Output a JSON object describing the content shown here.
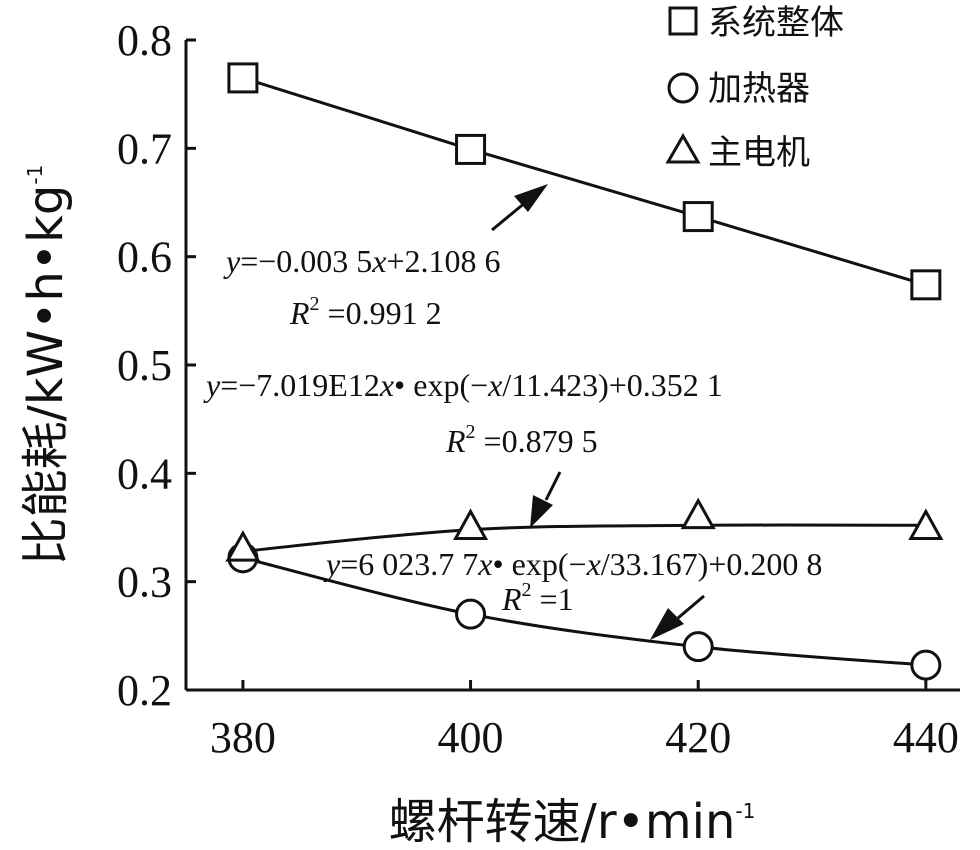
{
  "chart_data": {
    "type": "line",
    "xlabel_main": "螺杆转速/r",
    "xlabel_unit_rest": "min",
    "xlabel_sup": "-1",
    "ylabel_main": "比能耗/kW",
    "ylabel_h": "h",
    "ylabel_kg": "kg",
    "ylabel_sup": "-1",
    "xlim": [
      375,
      443
    ],
    "ylim": [
      0.2,
      0.8
    ],
    "x_ticks": [
      "380",
      "400",
      "420",
      "440"
    ],
    "y_ticks": [
      "0.2",
      "0.3",
      "0.4",
      "0.5",
      "0.6",
      "0.7",
      "0.8"
    ],
    "x": [
      380,
      400,
      420,
      440
    ],
    "series": [
      {
        "name": "系统整体",
        "marker": "square",
        "values": [
          0.765,
          0.699,
          0.637,
          0.574
        ]
      },
      {
        "name": "加热器",
        "marker": "circle",
        "values": [
          0.322,
          0.27,
          0.24,
          0.223
        ]
      },
      {
        "name": "主电机",
        "marker": "triangle",
        "values": [
          0.33,
          0.35,
          0.36,
          0.35
        ]
      }
    ],
    "annotations": [
      {
        "eq_y": "y",
        "eq_body": "=−0.003 5",
        "eq_x": "x",
        "eq_tail": "+2.108 6",
        "r2_label": "R",
        "r2_sup": "2",
        "r2_val": " =0.991 2"
      },
      {
        "eq_y": "y",
        "eq_body": "=−7.019E12",
        "eq_x": "x",
        "eq_tail": "• exp(−",
        "eq_x2": "x",
        "eq_tail2": "/11.423)+0.352 1",
        "r2_label": "R",
        "r2_sup": "2",
        "r2_val": " =0.879 5"
      },
      {
        "eq_y": "y",
        "eq_body": "=6 023.7 7",
        "eq_x": "x",
        "eq_tail": "• exp(−",
        "eq_x2": "x",
        "eq_tail2": "/33.167)+0.200 8",
        "r2_label": "R",
        "r2_sup": "2",
        "r2_val": " =1"
      }
    ],
    "grid": false,
    "legend_position": "top-right"
  }
}
